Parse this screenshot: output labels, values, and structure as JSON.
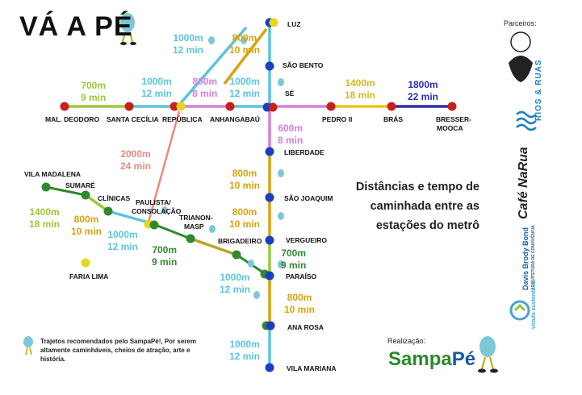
{
  "header": {
    "title": "VÁ A PÉ"
  },
  "headline": {
    "line1": "Distâncias e tempo de",
    "line2": "caminhada entre as",
    "line3": "estações do metrô"
  },
  "legend": {
    "text": "Trajetos recomendados pelo SampaPé!, Por serem altamente caminháveis, cheios de atração, arte e história."
  },
  "partners": {
    "label": "Parceiros:",
    "rios": "RIOS & RUAS",
    "cafe": "Café NaRua",
    "davis": "Davis Brody Bond",
    "davis_sub": "ARQUITETURA DE CONVIVÊNCIA",
    "virada": "virada sustentável"
  },
  "realizacao": {
    "label": "Realização:",
    "logo_a": "Sampa",
    "logo_b": "Pé"
  },
  "stations": {
    "luz": "LUZ",
    "sao_bento": "SÃO BENTO",
    "se": "SÉ",
    "liberdade": "LIBERDADE",
    "sao_joaquim": "SÃO JOAQUIM",
    "vergueiro": "VERGUEIRO",
    "paraiso": "PARAÍSO",
    "ana_rosa": "ANA ROSA",
    "vila_mariana": "VILA MARIANA",
    "mal_deodoro": "MAL. DEODORO",
    "santa_cecilia": "SANTA CECÍLIA",
    "republica": "REPÚBLICA",
    "anhangabau": "ANHANGABAÚ",
    "pedro_ii": "PEDRO II",
    "bras": "BRÁS",
    "bresser1": "BRESSER-",
    "bresser2": "MOOCA",
    "vila_madalena": "VILA MADALENA",
    "sumare": "SUMARÉ",
    "clinicas": "CLÍNICAS",
    "paulista1": "PAULISTA/",
    "paulista2": "CONSOLAÇÃO",
    "trianon1": "TRIANON-",
    "trianon2": "MASP",
    "brigadeiro": "BRIGADEIRO",
    "faria_lima": "FARIA LIMA"
  },
  "distances": {
    "rep_luz_d": "1000m",
    "rep_luz_t": "12 min",
    "sb_luz_d": "800m",
    "sb_luz_t": "10 min",
    "mal_sc_d": "700m",
    "mal_sc_t": "9 min",
    "sc_rep_d": "1000m",
    "sc_rep_t": "12 min",
    "rep_anh_d": "800m",
    "rep_anh_t": "8 min",
    "anh_se_d": "1000m",
    "anh_se_t": "12 min",
    "se_p2_d": "1400m",
    "se_p2_t": "18 min",
    "bras_bm_d": "1800m",
    "bras_bm_t": "22 min",
    "se_lib_d": "600m",
    "se_lib_t": "8 min",
    "pc_rep_d": "2000m",
    "pc_rep_t": "24 min",
    "lib_sj_d": "800m",
    "lib_sj_t": "10 min",
    "sj_verg_d": "800m",
    "sj_verg_t": "10 min",
    "vm_sum_d": "1400m",
    "vm_sum_t": "18 min",
    "sum_cli_d": "800m",
    "sum_cli_t": "10 min",
    "cli_pc_d": "1000m",
    "cli_pc_t": "12 min",
    "tri_brig_d": "700m",
    "tri_brig_t": "9 min",
    "verg_par_d": "700m",
    "verg_par_t": "9 min",
    "brig_par_d": "1000m",
    "brig_par_t": "12 min",
    "par_ar_d": "800m",
    "par_ar_t": "10 min",
    "ar_vm_d": "1000m",
    "ar_vm_t": "12 min"
  },
  "colors": {
    "blue_line": "#1a3fbf",
    "red_line": "#c8201d",
    "green_line": "#2f8a2f",
    "yellow_line": "#e8c51d",
    "seg_cyan": "#5bc3e0",
    "seg_orange": "#d9a310",
    "seg_lime": "#9cc83a",
    "seg_pink": "#d67fd9",
    "seg_salmon": "#e98a80",
    "seg_navy": "#2b2fa8",
    "seg_olive": "#b7a52a"
  }
}
